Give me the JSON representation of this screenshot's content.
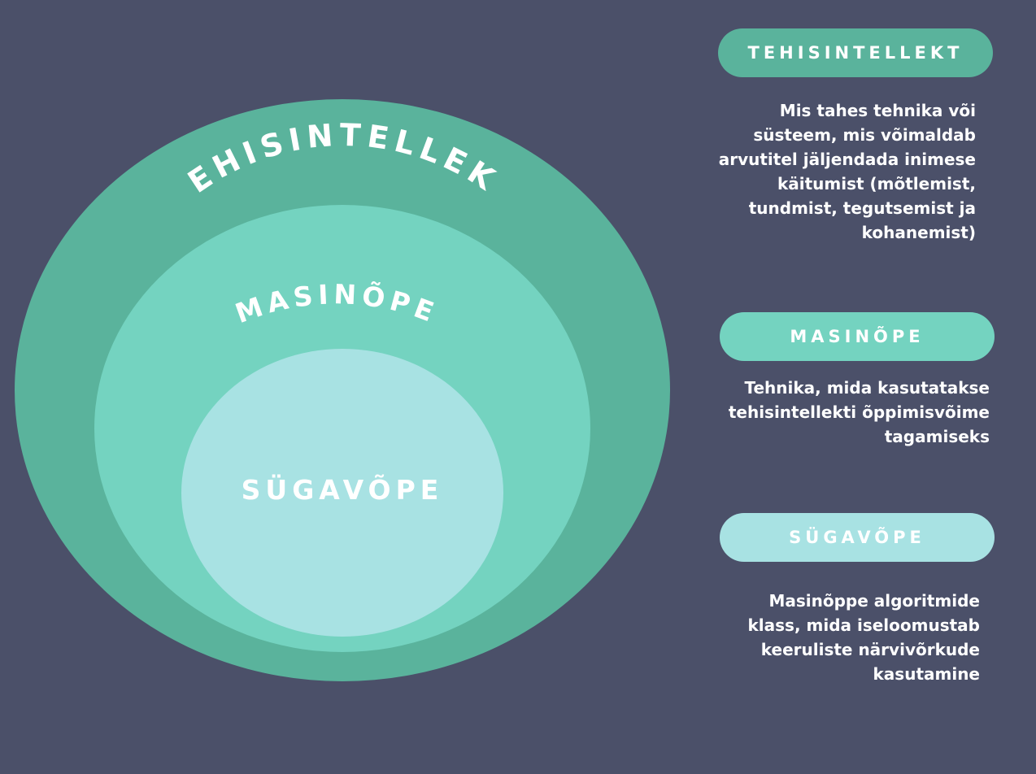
{
  "colors": {
    "background": "#4b5069",
    "ai": "#5ab39c",
    "ml": "#74d3c0",
    "dl": "#a8e2e3",
    "text": "#ffffff"
  },
  "diagram": {
    "outer_label": "TEHISINTELLEKT",
    "middle_label": "MASINÕPE",
    "inner_label": "SÜGAVÕPE"
  },
  "legend": [
    {
      "title": "TEHISINTELLEKT",
      "lines": [
        "Mis tahes tehnika või",
        "süsteem, mis võimaldab",
        "arvutitel jäljendada inimese",
        "käitumist (mõtlemist,",
        "tundmist, tegutsemist ja",
        "kohanemist)"
      ]
    },
    {
      "title": "MASINÕPE",
      "lines": [
        "Tehnika, mida kasutatakse",
        "tehisintellekti õppimisvõime",
        "tagamiseks"
      ]
    },
    {
      "title": "SÜGAVÕPE",
      "lines": [
        "Masinõppe algoritmide",
        "klass, mida iseloomustab",
        "keeruliste närvivõrkude",
        "kasutamine"
      ]
    }
  ]
}
